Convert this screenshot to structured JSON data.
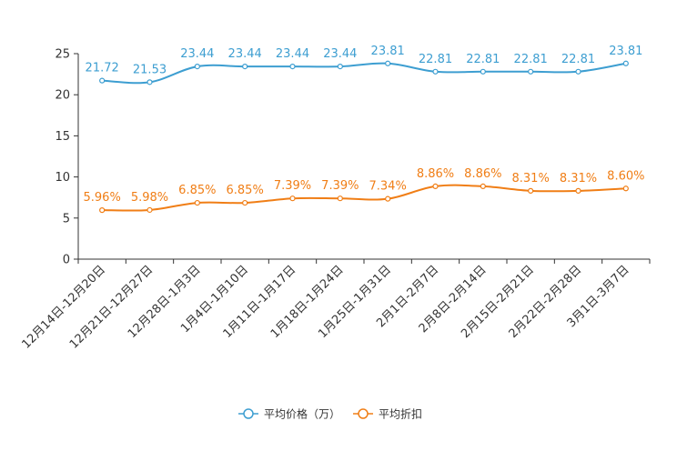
{
  "chart_data": {
    "type": "line",
    "categories": [
      "12月14日-12月20日",
      "12月21日-12月27日",
      "12月28日-1月3日",
      "1月4日-1月10日",
      "1月11日-1月17日",
      "1月18日-1月24日",
      "1月25日-1月31日",
      "2月1日-2月7日",
      "2月8日-2月14日",
      "2月15日-2月21日",
      "2月22日-2月28日",
      "3月1日-3月7日"
    ],
    "series": [
      {
        "name": "平均价格（万）",
        "color": "#3d9ed1",
        "values": [
          21.72,
          21.53,
          23.44,
          23.44,
          23.44,
          23.44,
          23.81,
          22.81,
          22.81,
          22.81,
          22.81,
          23.81
        ],
        "labels": [
          "21.72",
          "21.53",
          "23.44",
          "23.44",
          "23.44",
          "23.44",
          "23.81",
          "22.81",
          "22.81",
          "22.81",
          "22.81",
          "23.81"
        ]
      },
      {
        "name": "平均折扣",
        "color": "#f07e16",
        "values": [
          5.96,
          5.98,
          6.85,
          6.85,
          7.39,
          7.39,
          7.34,
          8.86,
          8.86,
          8.31,
          8.31,
          8.6
        ],
        "labels": [
          "5.96%",
          "5.98%",
          "6.85%",
          "6.85%",
          "7.39%",
          "7.39%",
          "7.34%",
          "8.86%",
          "8.86%",
          "8.31%",
          "8.31%",
          "8.60%"
        ]
      }
    ],
    "ylim": [
      0,
      25
    ],
    "yticks": [
      0,
      5,
      10,
      15,
      20,
      25
    ],
    "ytick_labels": [
      "0",
      "5",
      "10",
      "15",
      "20",
      "25"
    ],
    "axis_color": "#333333",
    "legend_position": "bottom-center"
  }
}
